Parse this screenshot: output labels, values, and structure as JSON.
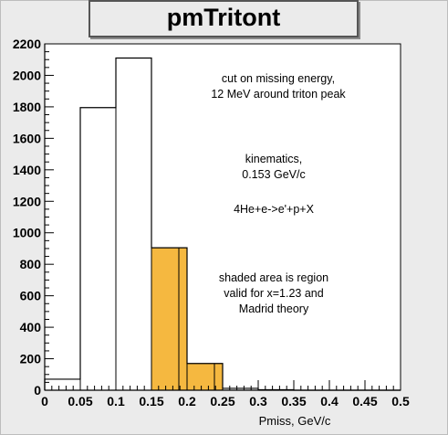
{
  "chart_data": {
    "type": "bar",
    "title": "pmTritont",
    "xlabel": "Pmiss, GeV/c",
    "ylabel": "",
    "xlim": [
      0,
      0.5
    ],
    "ylim": [
      0,
      2200
    ],
    "bins": [
      {
        "low": 0.0,
        "high": 0.05,
        "value": 70,
        "shaded": false
      },
      {
        "low": 0.05,
        "high": 0.1,
        "value": 1795,
        "shaded": false
      },
      {
        "low": 0.1,
        "high": 0.15,
        "value": 2110,
        "shaded": false
      },
      {
        "low": 0.15,
        "high": 0.2,
        "value": 905,
        "shaded": true
      },
      {
        "low": 0.2,
        "high": 0.25,
        "value": 170,
        "shaded": true
      },
      {
        "low": 0.25,
        "high": 0.3,
        "value": 12,
        "shaded": false
      },
      {
        "low": 0.3,
        "high": 0.35,
        "value": 3,
        "shaded": false
      },
      {
        "low": 0.35,
        "high": 0.4,
        "value": 0,
        "shaded": false
      },
      {
        "low": 0.4,
        "high": 0.45,
        "value": 0,
        "shaded": false
      },
      {
        "low": 0.45,
        "high": 0.5,
        "value": 0,
        "shaded": false
      }
    ],
    "x_ticks": [
      "0",
      "0.05",
      "0.1",
      "0.15",
      "0.2",
      "0.25",
      "0.3",
      "0.35",
      "0.4",
      "0.45",
      "0.5"
    ],
    "y_ticks": [
      "0",
      "200",
      "400",
      "600",
      "800",
      "1000",
      "1200",
      "1400",
      "1600",
      "1800",
      "2000",
      "2200"
    ],
    "colors": {
      "shaded_fill": "#f5b840",
      "shaded_stroke": "#000000",
      "line": "#000000",
      "background": "#ffffff"
    },
    "grid": false,
    "annotations": [
      {
        "lines": [
          "cut on missing energy,",
          "12 MeV around triton peak"
        ]
      },
      {
        "lines": [
          "kinematics,",
          "0.153 GeV/c"
        ]
      },
      {
        "lines": [
          "4He+e->e'+p+X"
        ]
      },
      {
        "lines": [
          "shaded area is region",
          "valid for x=1.23 and",
          "Madrid theory"
        ]
      }
    ]
  }
}
